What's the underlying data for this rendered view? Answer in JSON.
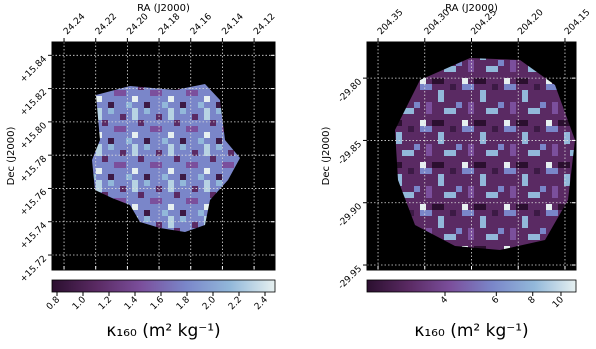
{
  "chart_data": [
    {
      "type": "image",
      "xlabel": "RA (J2000)",
      "ylabel": "Dec (J2000)",
      "xlim": [
        24.2476,
        24.1068
      ],
      "xticks": [
        24.24,
        24.22,
        {
          "value": 24.2,
          "label": "24.20"
        },
        24.18,
        24.16,
        24.14,
        24.12
      ],
      "ylim": [
        15.711,
        15.848
      ],
      "yticks": [
        {
          "value": 15.72,
          "label": "+15.72"
        },
        {
          "value": 15.74,
          "label": "+15.74"
        },
        {
          "value": 15.76,
          "label": "+15.76"
        },
        {
          "value": 15.78,
          "label": "+15.78"
        },
        {
          "value": 15.8,
          "label": "+15.80"
        },
        {
          "value": 15.82,
          "label": "+15.82"
        },
        {
          "value": 15.84,
          "label": "+15.84"
        }
      ],
      "grid": true,
      "colorbar": {
        "label": "κ₁₆₀ (m² kg⁻¹)",
        "lim": [
          0.7615,
          2.477
        ],
        "log": false,
        "ticks": [
          0.8,
          {
            "value": 1,
            "label": "1.0"
          },
          1.2,
          1.4,
          1.6,
          1.8,
          {
            "value": 2,
            "label": "2.0"
          },
          2.2,
          2.4
        ],
        "colors": [
          "#2b0f2f",
          "#5a2a63",
          "#7b4f9c",
          "#7a86c9",
          "#92b8da",
          "#e6f0f0"
        ]
      }
    },
    {
      "type": "image",
      "xlabel": "RA (J2000)",
      "ylabel": "Dec (J2000)",
      "xlim": [
        204.3618,
        204.1382
      ],
      "xticks": [
        204.35,
        {
          "value": 204.3,
          "label": "204.30"
        },
        204.25,
        {
          "value": 204.2,
          "label": "204.20"
        },
        204.15
      ],
      "ylim": [
        -29.954,
        -29.771
      ],
      "yticks": [
        {
          "value": -29.95,
          "label": "-29.95"
        },
        {
          "value": -29.9,
          "label": "-29.90"
        },
        {
          "value": -29.85,
          "label": "-29.85"
        },
        {
          "value": -29.8,
          "label": "-29.80"
        }
      ],
      "grid": true,
      "colorbar": {
        "label": "κ₁₆₀ (m² kg⁻¹)",
        "lim": [
          2.16,
          11.26
        ],
        "log": true,
        "ticks": [
          4,
          6,
          8,
          10
        ],
        "colors": [
          "#2b0f2f",
          "#5a2a63",
          "#7b4f9c",
          "#7a86c9",
          "#92b8da",
          "#e6f0f0"
        ]
      }
    }
  ]
}
